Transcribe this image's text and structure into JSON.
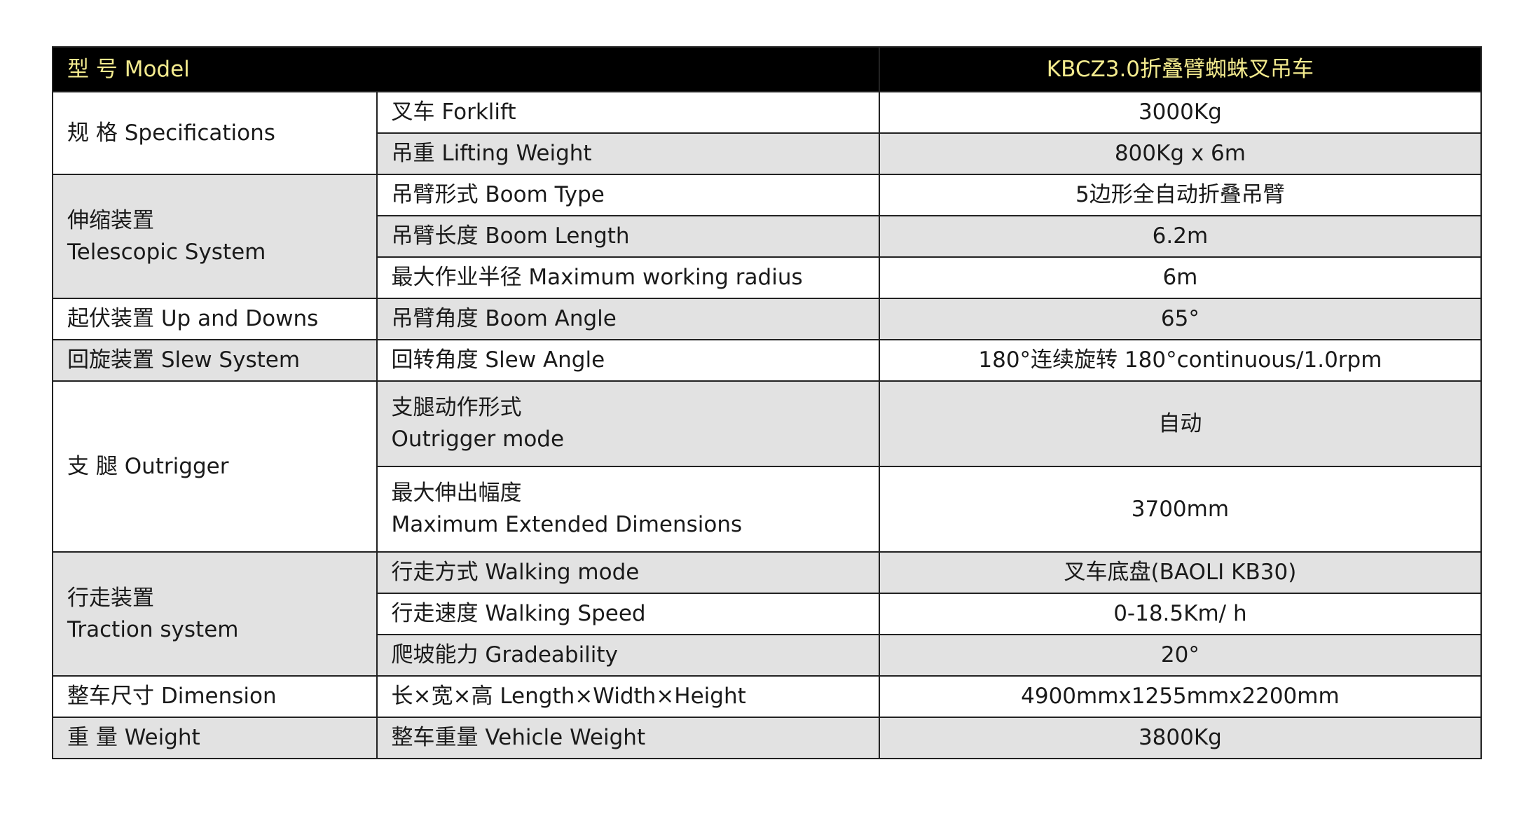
{
  "header": {
    "label": "型  号 Model",
    "value": "KBCZ3.0折叠臂蜘蛛叉吊车"
  },
  "groups": [
    {
      "label": "规  格 Specifications",
      "rows": [
        {
          "item": "叉车 Forklift",
          "value": "3000Kg"
        },
        {
          "item": "吊重 Lifting Weight",
          "value": "800Kg x 6m"
        }
      ]
    },
    {
      "label_cn": "伸缩装置",
      "label_en": "Telescopic System",
      "rows": [
        {
          "item": "吊臂形式  Boom Type",
          "value": "5边形全自动折叠吊臂"
        },
        {
          "item": "吊臂长度  Boom Length",
          "value": "6.2m"
        },
        {
          "item": "最大作业半径 Maximum working radius",
          "value": "6m"
        }
      ]
    },
    {
      "label": "起伏装置  Up and Downs",
      "rows": [
        {
          "item": "吊臂角度  Boom Angle",
          "value": "65°"
        }
      ]
    },
    {
      "label": "回旋装置  Slew System",
      "rows": [
        {
          "item": "回转角度  Slew Angle",
          "value": "180°连续旋转 180°continuous/1.0rpm"
        }
      ]
    },
    {
      "label": "支   腿  Outrigger",
      "rows": [
        {
          "item_cn": "支腿动作形式",
          "item_en": "Outrigger  mode",
          "value": "自动"
        },
        {
          "item_cn": "最大伸出幅度",
          "item_en": "Maximum Extended Dimensions",
          "value": "3700mm"
        }
      ]
    },
    {
      "label_cn": "行走装置",
      "label_en": "Traction system",
      "rows": [
        {
          "item": "行走方式  Walking mode",
          "value": "叉车底盘(BAOLI KB30)"
        },
        {
          "item": "行走速度  Walking Speed",
          "value": "0-18.5Km/ h"
        },
        {
          "item": "爬坡能力  Gradeability",
          "value": "20°"
        }
      ]
    },
    {
      "label": "整车尺寸  Dimension",
      "rows": [
        {
          "item": "长×宽×高  Length×Width×Height",
          "value": "4900mmx1255mmx2200mm"
        }
      ]
    },
    {
      "label": "重 量  Weight",
      "rows": [
        {
          "item": "整车重量  Vehicle Weight",
          "value": "3800Kg"
        }
      ]
    }
  ],
  "colors": {
    "header_bg": "#000000",
    "header_text": "#f3ea8e",
    "shaded_row": "#e2e2e2"
  }
}
